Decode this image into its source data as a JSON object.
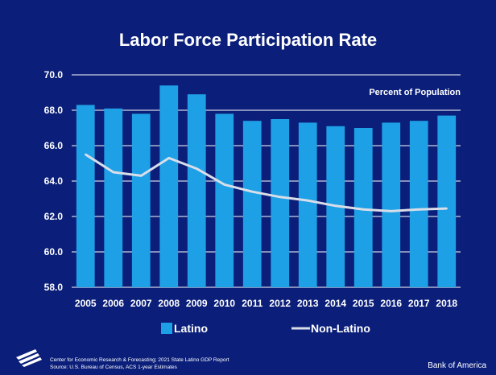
{
  "chart_data": {
    "type": "bar",
    "title": "Labor Force Participation Rate",
    "unit_label": "Percent of Population",
    "categories": [
      "2005",
      "2006",
      "2007",
      "2008",
      "2009",
      "2010",
      "2011",
      "2012",
      "2013",
      "2014",
      "2015",
      "2016",
      "2017",
      "2018"
    ],
    "series": [
      {
        "name": "Latino",
        "kind": "bar",
        "color": "#1ea0e6",
        "values": [
          68.3,
          68.1,
          67.8,
          69.4,
          68.9,
          67.8,
          67.4,
          67.5,
          67.3,
          67.1,
          67.0,
          67.3,
          67.4,
          67.7
        ]
      },
      {
        "name": "Non-Latino",
        "kind": "line",
        "color": "#d9dee8",
        "values": [
          65.5,
          64.5,
          64.3,
          65.3,
          64.7,
          63.8,
          63.4,
          63.1,
          62.9,
          62.6,
          62.4,
          62.3,
          62.4,
          62.45
        ]
      }
    ],
    "ylim": [
      58.0,
      70.0
    ],
    "yticks": [
      "58.0",
      "60.0",
      "62.0",
      "64.0",
      "66.0",
      "68.0",
      "70.0"
    ],
    "grid": true,
    "legend_position": "bottom"
  },
  "footer": {
    "source_line1": "Center for Economic Research & Forecasting; 2021 State Latino GDP Report",
    "source_line2": "Source: U.S. Bureau of Census, ACS 1-year Estimates",
    "brand": "Bank of America"
  }
}
